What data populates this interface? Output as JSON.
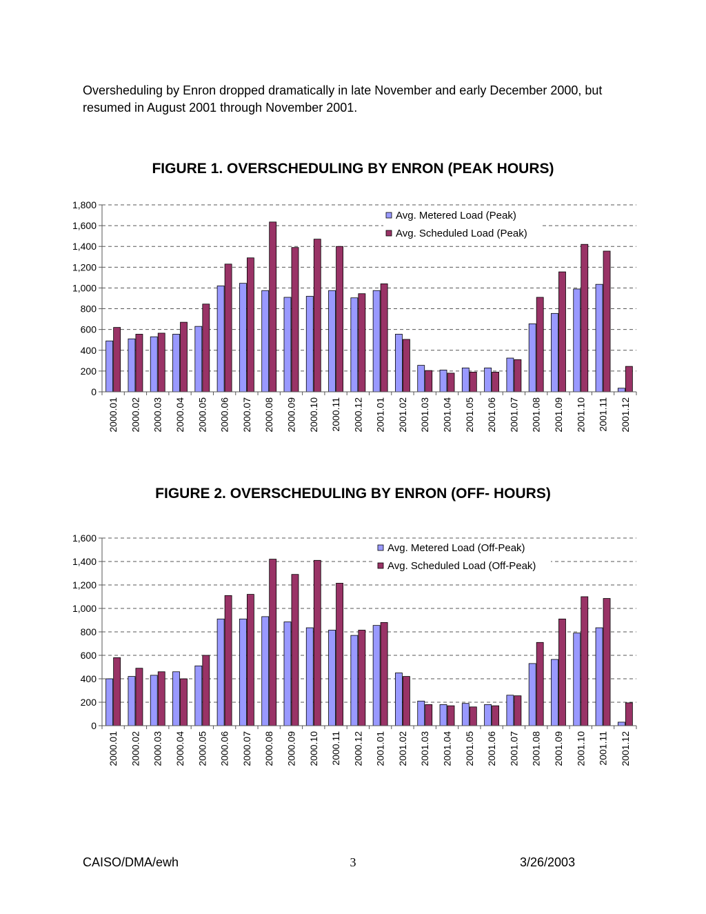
{
  "intro_text": "Oversheduling by Enron dropped dramatically in late November and early December 2000, but resumed in August 2001 through November 2001.",
  "colors": {
    "metered": "#9999FF",
    "scheduled": "#993366"
  },
  "chart_data": [
    {
      "type": "bar",
      "title": "FIGURE 1. OVERSCHEDULING BY ENRON (PEAK HOURS)",
      "categories": [
        "2000.01",
        "2000.02",
        "2000.03",
        "2000.04",
        "2000.05",
        "2000.06",
        "2000.07",
        "2000.08",
        "2000.09",
        "2000.10",
        "2000.11",
        "2000.12",
        "2001.01",
        "2001.02",
        "2001.03",
        "2001.04",
        "2001.05",
        "2001.06",
        "2001.07",
        "2001.08",
        "2001.09",
        "2001.10",
        "2001.11",
        "2001.12"
      ],
      "series": [
        {
          "name": "Avg. Metered Load (Peak)",
          "values": [
            490,
            510,
            530,
            555,
            630,
            1020,
            1045,
            975,
            910,
            920,
            975,
            905,
            975,
            555,
            255,
            210,
            230,
            230,
            325,
            655,
            755,
            990,
            1035,
            35
          ]
        },
        {
          "name": "Avg. Scheduled Load (Peak)",
          "values": [
            620,
            555,
            565,
            670,
            845,
            1230,
            1290,
            1635,
            1390,
            1470,
            1400,
            945,
            1040,
            505,
            205,
            180,
            190,
            190,
            310,
            910,
            1155,
            1420,
            1355,
            245
          ]
        }
      ],
      "yticks": [
        "0",
        "200",
        "400",
        "600",
        "800",
        "1,000",
        "1,200",
        "1,400",
        "1,600",
        "1,800"
      ],
      "ylim": [
        0,
        1800
      ],
      "grid": true,
      "legend_position": "top-right",
      "xlabel": "",
      "ylabel": ""
    },
    {
      "type": "bar",
      "title": "FIGURE 2. OVERSCHEDULING BY ENRON (OFF- HOURS)",
      "categories": [
        "2000.01",
        "2000.02",
        "2000.03",
        "2000.04",
        "2000.05",
        "2000.06",
        "2000.07",
        "2000.08",
        "2000.09",
        "2000.10",
        "2000.11",
        "2000.12",
        "2001.01",
        "2001.02",
        "2001.03",
        "2001.04",
        "2001.05",
        "2001.06",
        "2001.07",
        "2001.08",
        "2001.09",
        "2001.10",
        "2001.11",
        "2001.12"
      ],
      "series": [
        {
          "name": "Avg. Metered Load (Off-Peak)",
          "values": [
            400,
            420,
            430,
            460,
            510,
            910,
            910,
            930,
            885,
            835,
            815,
            770,
            855,
            450,
            210,
            180,
            190,
            180,
            260,
            530,
            565,
            790,
            835,
            30
          ]
        },
        {
          "name": "Avg. Scheduled Load (Off-Peak)",
          "values": [
            580,
            490,
            460,
            400,
            600,
            1110,
            1120,
            1420,
            1290,
            1410,
            1215,
            815,
            880,
            420,
            180,
            170,
            160,
            170,
            255,
            710,
            910,
            1100,
            1085,
            195
          ]
        }
      ],
      "yticks": [
        "0",
        "200",
        "400",
        "600",
        "800",
        "1,000",
        "1,200",
        "1,400",
        "1,600"
      ],
      "ylim": [
        0,
        1600
      ],
      "grid": true,
      "legend_position": "top-right",
      "xlabel": "",
      "ylabel": ""
    }
  ],
  "footer": {
    "left": "CAISO/DMA/ewh",
    "center": "3",
    "right": "3/26/2003"
  }
}
